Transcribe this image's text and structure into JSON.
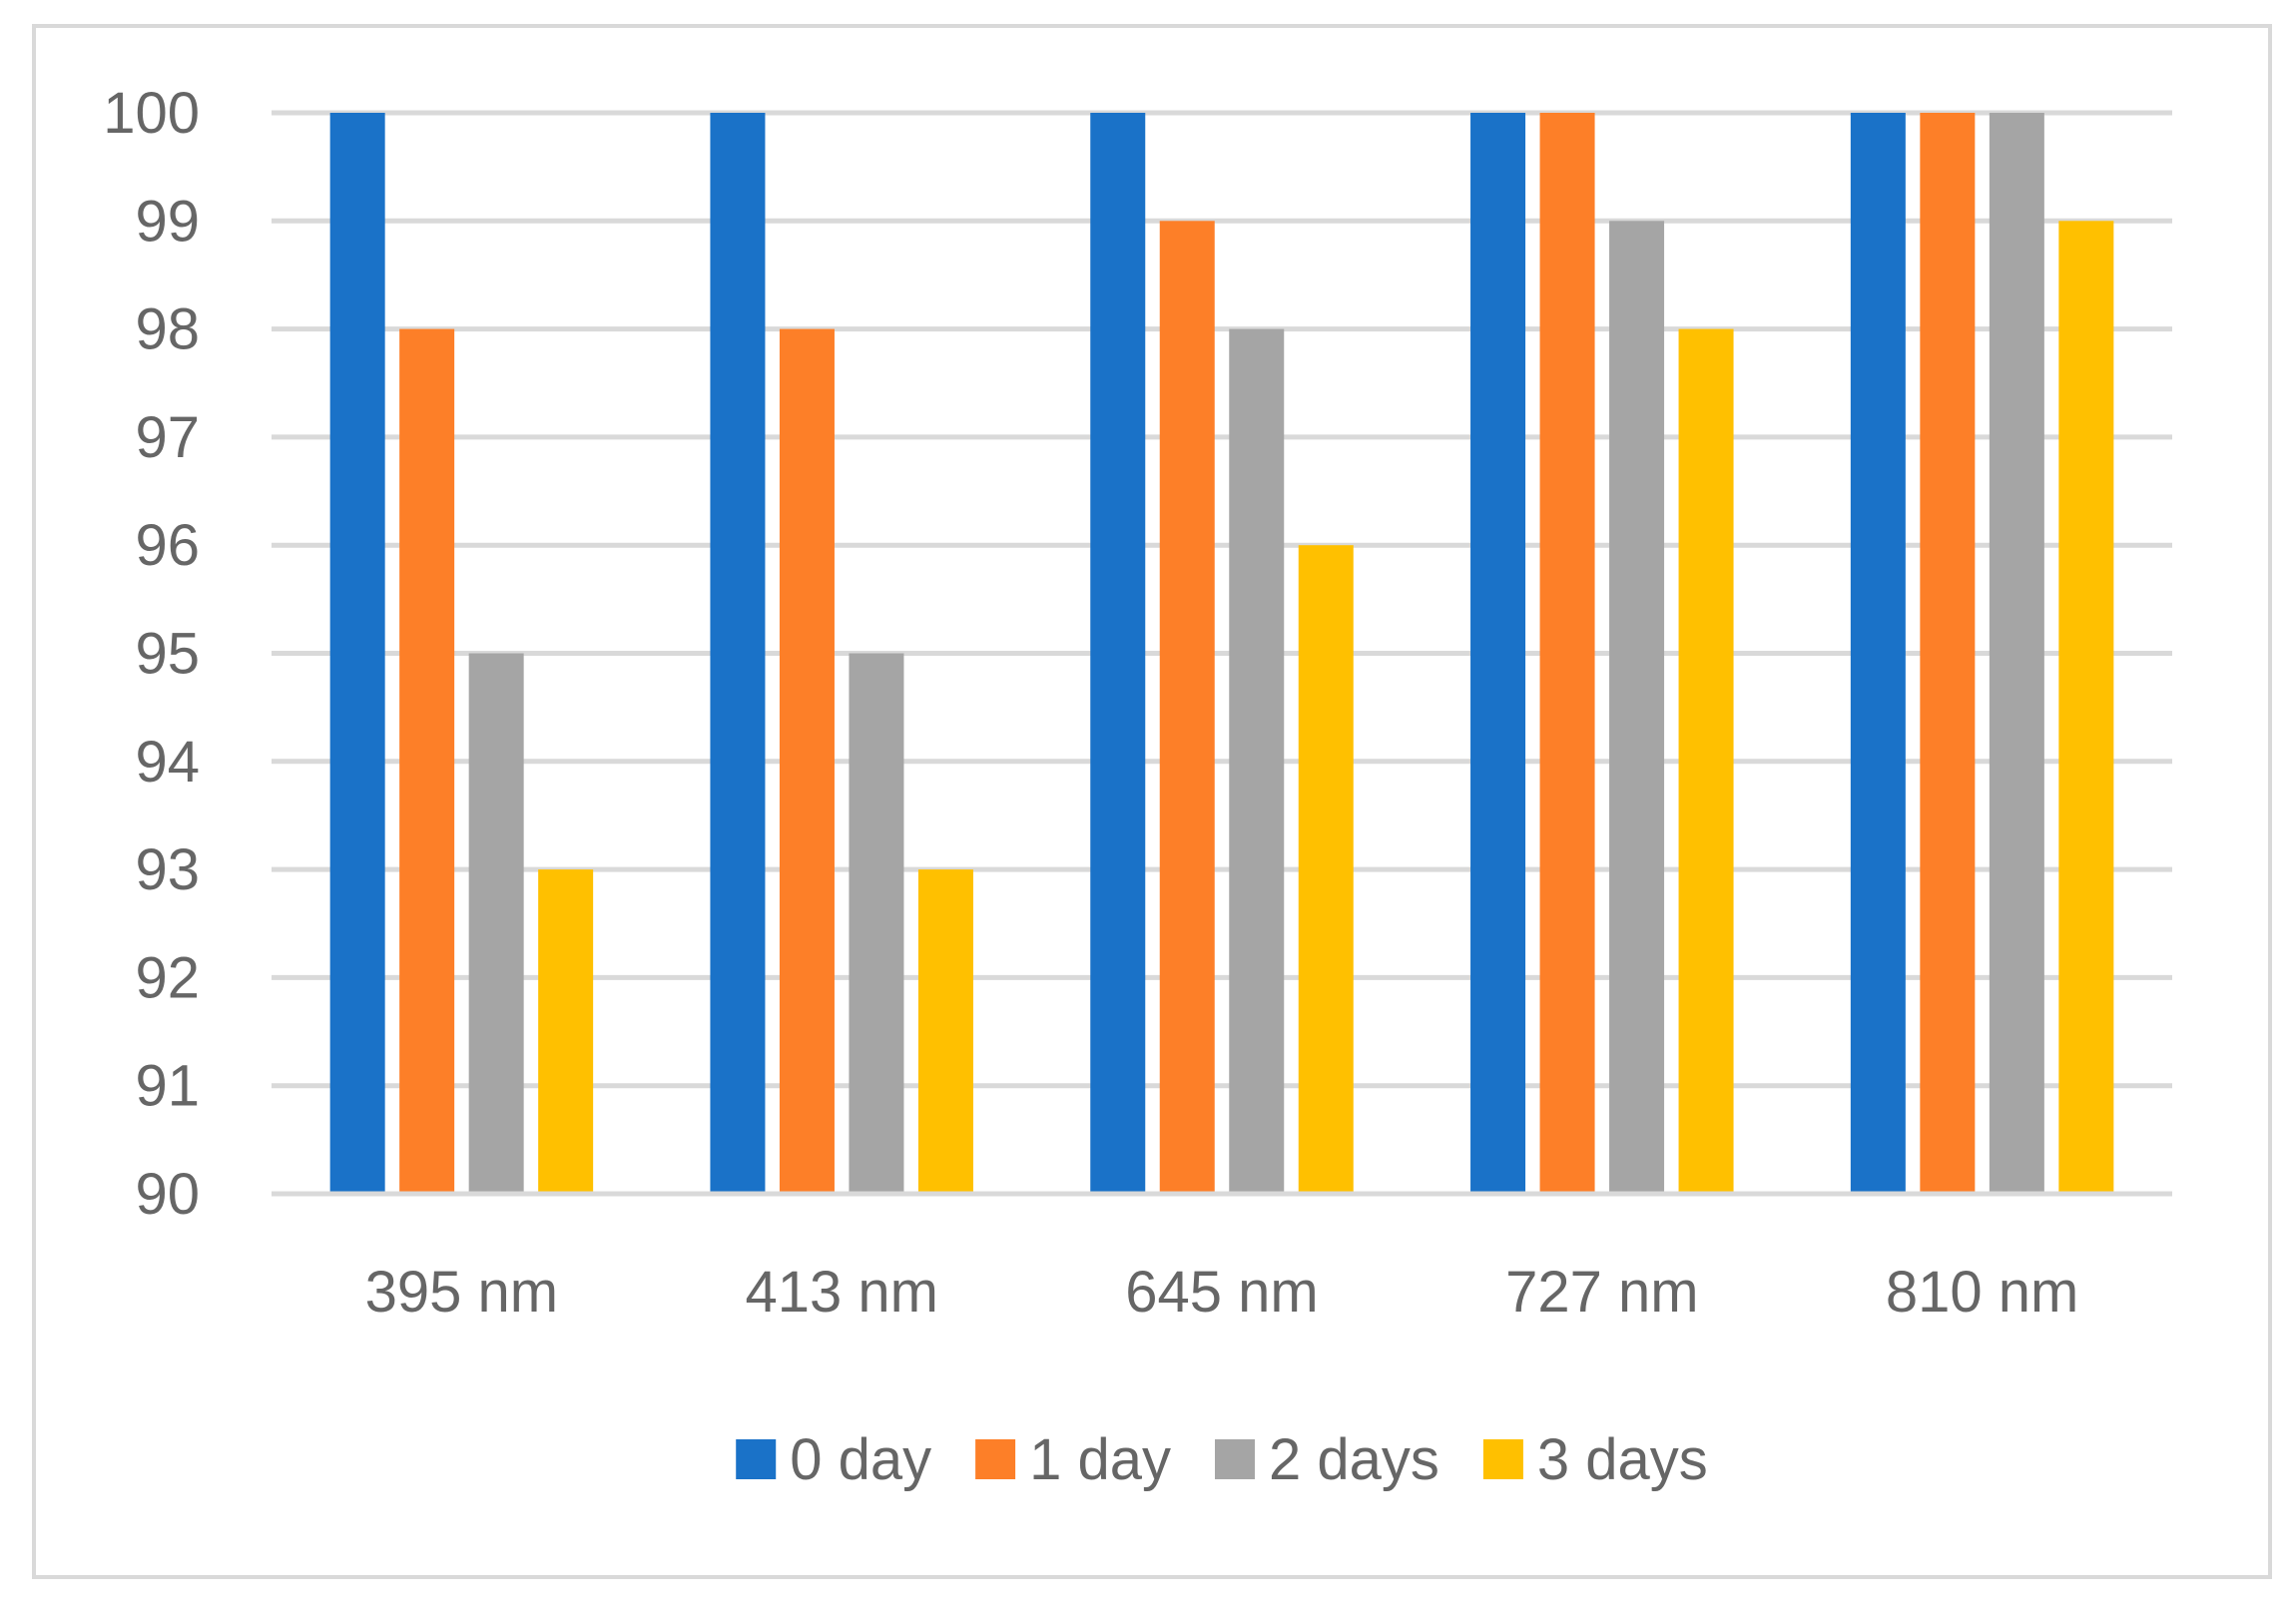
{
  "chart_data": {
    "type": "bar",
    "title": "",
    "xlabel": "",
    "ylabel": "",
    "categories": [
      "395 nm",
      "413 nm",
      "645 nm",
      "727 nm",
      "810 nm"
    ],
    "series": [
      {
        "name": "0 day",
        "color": "#1a72c8",
        "values": [
          100,
          100,
          100,
          100,
          100
        ]
      },
      {
        "name": "1 day",
        "color": "#fd7f28",
        "values": [
          98,
          98,
          99,
          100,
          100
        ]
      },
      {
        "name": "2 days",
        "color": "#a5a5a5",
        "values": [
          95,
          95,
          98,
          99,
          100
        ]
      },
      {
        "name": "3 days",
        "color": "#ffc000",
        "values": [
          93,
          93,
          96,
          98,
          99
        ]
      }
    ],
    "ylim": [
      90,
      100
    ],
    "yticks": [
      90,
      91,
      92,
      93,
      94,
      95,
      96,
      97,
      98,
      99,
      100
    ],
    "grid": true,
    "legend_position": "bottom"
  }
}
